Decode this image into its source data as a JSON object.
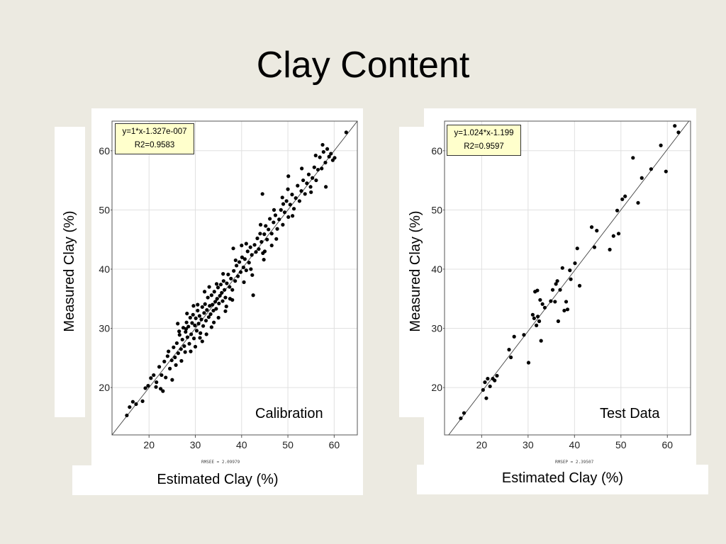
{
  "title": "Clay Content",
  "chart_data": [
    {
      "type": "scatter",
      "label": "Calibration",
      "xlabel": "Estimated Clay  (%)",
      "ylabel": "Measured Clay  (%)",
      "xlim": [
        12,
        65
      ],
      "ylim": [
        12,
        65
      ],
      "xticks": [
        20,
        30,
        40,
        50,
        60
      ],
      "yticks": [
        20,
        30,
        40,
        50,
        60
      ],
      "grid": true,
      "equation": "y=1*x-1.327e-007",
      "r2": "R2=0.9583",
      "rmse": "RMSEE = 2.09979",
      "fit": {
        "slope": 1.0,
        "intercept": 0.0
      },
      "points": [
        [
          15.2,
          15.3
        ],
        [
          15.8,
          16.7
        ],
        [
          16.5,
          17.6
        ],
        [
          17.2,
          17.2
        ],
        [
          18.6,
          17.7
        ],
        [
          19.2,
          19.9
        ],
        [
          19.8,
          20.3
        ],
        [
          20.4,
          21.6
        ],
        [
          21.0,
          22.1
        ],
        [
          21.6,
          20.9
        ],
        [
          22.2,
          23.5
        ],
        [
          22.7,
          22.1
        ],
        [
          23.3,
          24.4
        ],
        [
          23.6,
          21.7
        ],
        [
          24.0,
          25.3
        ],
        [
          24.5,
          23.2
        ],
        [
          24.9,
          24.6
        ],
        [
          25.3,
          26.8
        ],
        [
          25.6,
          25.1
        ],
        [
          26.0,
          27.5
        ],
        [
          26.3,
          25.8
        ],
        [
          26.6,
          28.9
        ],
        [
          26.9,
          26.5
        ],
        [
          27.2,
          28.1
        ],
        [
          27.4,
          30.1
        ],
        [
          27.6,
          27.0
        ],
        [
          27.9,
          29.4
        ],
        [
          28.1,
          31.0
        ],
        [
          28.3,
          28.5
        ],
        [
          28.5,
          30.3
        ],
        [
          28.7,
          27.4
        ],
        [
          28.9,
          31.8
        ],
        [
          29.1,
          29.0
        ],
        [
          29.3,
          30.9
        ],
        [
          29.5,
          32.3
        ],
        [
          29.7,
          28.3
        ],
        [
          29.9,
          30.5
        ],
        [
          30.1,
          31.7
        ],
        [
          30.3,
          29.6
        ],
        [
          30.5,
          33.0
        ],
        [
          30.7,
          30.8
        ],
        [
          30.9,
          32.1
        ],
        [
          31.1,
          29.2
        ],
        [
          31.3,
          31.5
        ],
        [
          31.5,
          33.6
        ],
        [
          31.7,
          30.4
        ],
        [
          31.9,
          32.6
        ],
        [
          32.1,
          34.1
        ],
        [
          32.3,
          31.3
        ],
        [
          32.5,
          33.1
        ],
        [
          32.7,
          35.2
        ],
        [
          32.9,
          31.9
        ],
        [
          33.1,
          33.8
        ],
        [
          33.3,
          32.4
        ],
        [
          33.5,
          35.6
        ],
        [
          33.7,
          34.0
        ],
        [
          33.9,
          33.0
        ],
        [
          34.1,
          36.2
        ],
        [
          34.3,
          34.5
        ],
        [
          34.5,
          33.3
        ],
        [
          34.7,
          35.0
        ],
        [
          34.9,
          36.9
        ],
        [
          35.1,
          34.2
        ],
        [
          35.3,
          35.5
        ],
        [
          35.5,
          37.4
        ],
        [
          35.7,
          36.0
        ],
        [
          35.9,
          34.6
        ],
        [
          36.1,
          38.0
        ],
        [
          36.3,
          36.5
        ],
        [
          36.5,
          35.2
        ],
        [
          36.8,
          37.6
        ],
        [
          37.1,
          39.1
        ],
        [
          37.4,
          37.0
        ],
        [
          37.7,
          38.4
        ],
        [
          38.0,
          36.5
        ],
        [
          38.3,
          39.7
        ],
        [
          38.6,
          38.0
        ],
        [
          38.9,
          40.6
        ],
        [
          39.2,
          38.8
        ],
        [
          39.5,
          41.2
        ],
        [
          39.8,
          39.5
        ],
        [
          40.1,
          42.0
        ],
        [
          40.4,
          40.3
        ],
        [
          40.7,
          41.7
        ],
        [
          41.0,
          39.8
        ],
        [
          41.3,
          43.0
        ],
        [
          41.6,
          41.1
        ],
        [
          41.9,
          43.7
        ],
        [
          42.2,
          42.4
        ],
        [
          42.5,
          35.6
        ],
        [
          42.8,
          44.1
        ],
        [
          43.1,
          42.9
        ],
        [
          43.4,
          45.2
        ],
        [
          43.7,
          43.4
        ],
        [
          44.0,
          46.0
        ],
        [
          44.3,
          44.6
        ],
        [
          44.6,
          42.7
        ],
        [
          44.9,
          45.9
        ],
        [
          45.2,
          47.3
        ],
        [
          45.5,
          45.0
        ],
        [
          45.8,
          46.7
        ],
        [
          46.1,
          48.5
        ],
        [
          46.5,
          46.0
        ],
        [
          46.9,
          47.9
        ],
        [
          47.3,
          49.1
        ],
        [
          47.7,
          46.8
        ],
        [
          48.1,
          48.4
        ],
        [
          48.5,
          50.0
        ],
        [
          48.9,
          47.5
        ],
        [
          49.3,
          49.6
        ],
        [
          49.7,
          51.5
        ],
        [
          50.1,
          48.8
        ],
        [
          50.5,
          50.9
        ],
        [
          50.9,
          52.6
        ],
        [
          51.3,
          50.2
        ],
        [
          51.7,
          52.0
        ],
        [
          52.1,
          54.1
        ],
        [
          52.5,
          51.5
        ],
        [
          52.9,
          53.2
        ],
        [
          53.3,
          55.0
        ],
        [
          53.7,
          52.7
        ],
        [
          54.1,
          54.5
        ],
        [
          54.5,
          56.0
        ],
        [
          54.9,
          53.9
        ],
        [
          55.3,
          55.4
        ],
        [
          55.7,
          57.2
        ],
        [
          56.1,
          55.0
        ],
        [
          56.5,
          56.8
        ],
        [
          56.9,
          58.9
        ],
        [
          57.3,
          57.0
        ],
        [
          57.7,
          59.8
        ],
        [
          58.1,
          58.0
        ],
        [
          58.5,
          60.3
        ],
        [
          58.9,
          59.0
        ],
        [
          59.3,
          59.5
        ],
        [
          59.7,
          58.4
        ],
        [
          60.1,
          58.8
        ],
        [
          57.5,
          61.0
        ],
        [
          58.2,
          53.9
        ],
        [
          62.6,
          63.1
        ],
        [
          50.1,
          55.7
        ],
        [
          44.5,
          52.7
        ],
        [
          47.5,
          45.1
        ],
        [
          41.0,
          44.3
        ],
        [
          38.2,
          43.5
        ],
        [
          36.5,
          32.9
        ],
        [
          33.0,
          37.0
        ],
        [
          31.5,
          27.8
        ],
        [
          29.0,
          26.1
        ],
        [
          27.0,
          24.5
        ],
        [
          25.0,
          21.3
        ],
        [
          23.0,
          19.4
        ],
        [
          21.5,
          20.1
        ],
        [
          22.5,
          19.8
        ],
        [
          26.5,
          29.5
        ],
        [
          28.2,
          32.5
        ],
        [
          30.5,
          34.0
        ],
        [
          32.4,
          29.0
        ],
        [
          34.6,
          37.5
        ],
        [
          36.7,
          33.7
        ],
        [
          38.7,
          41.5
        ],
        [
          40.5,
          37.8
        ],
        [
          42.0,
          40.0
        ],
        [
          44.1,
          47.5
        ],
        [
          46.5,
          44.0
        ],
        [
          48.8,
          52.1
        ],
        [
          51.0,
          49.0
        ],
        [
          53.0,
          57.0
        ],
        [
          55.0,
          53.0
        ],
        [
          56.0,
          59.2
        ],
        [
          49.0,
          51.0
        ],
        [
          45.0,
          43.0
        ],
        [
          37.5,
          35.0
        ],
        [
          35.0,
          31.8
        ],
        [
          33.5,
          30.2
        ],
        [
          31.0,
          28.4
        ],
        [
          29.6,
          33.8
        ],
        [
          27.8,
          26.0
        ],
        [
          25.8,
          23.8
        ],
        [
          24.2,
          26.1
        ],
        [
          26.2,
          30.8
        ],
        [
          28.0,
          29.9
        ],
        [
          30.0,
          26.9
        ],
        [
          32.0,
          36.2
        ],
        [
          34.0,
          31.0
        ],
        [
          36.0,
          39.2
        ],
        [
          38.0,
          34.8
        ],
        [
          40.0,
          44.0
        ],
        [
          42.3,
          39.0
        ],
        [
          44.8,
          41.6
        ],
        [
          47.0,
          50.0
        ],
        [
          50.0,
          53.5
        ]
      ]
    },
    {
      "type": "scatter",
      "label": "Test Data",
      "xlabel": "Estimated Clay  (%)",
      "ylabel": "Measured Clay  (%)",
      "xlim": [
        12,
        65
      ],
      "ylim": [
        12,
        65
      ],
      "xticks": [
        20,
        30,
        40,
        50,
        60
      ],
      "yticks": [
        20,
        30,
        40,
        50,
        60
      ],
      "grid": true,
      "equation": "y=1.024*x-1.199",
      "r2": "R2=0.9597",
      "rmse": "RMSEP = 2.39507",
      "fit": {
        "slope": 1.024,
        "intercept": -1.199
      },
      "points": [
        [
          15.5,
          14.8
        ],
        [
          16.2,
          15.7
        ],
        [
          20.3,
          19.6
        ],
        [
          20.7,
          20.9
        ],
        [
          21.0,
          18.2
        ],
        [
          21.3,
          21.5
        ],
        [
          21.8,
          20.2
        ],
        [
          22.4,
          21.5
        ],
        [
          22.8,
          21.2
        ],
        [
          23.3,
          22.0
        ],
        [
          25.9,
          26.4
        ],
        [
          26.3,
          25.1
        ],
        [
          27.0,
          28.6
        ],
        [
          29.1,
          28.9
        ],
        [
          30.1,
          24.2
        ],
        [
          31.0,
          32.3
        ],
        [
          31.3,
          31.7
        ],
        [
          31.8,
          30.5
        ],
        [
          32.1,
          32.0
        ],
        [
          32.4,
          31.2
        ],
        [
          32.6,
          34.8
        ],
        [
          32.8,
          27.9
        ],
        [
          33.1,
          34.1
        ],
        [
          33.6,
          33.5
        ],
        [
          31.5,
          36.2
        ],
        [
          32.0,
          36.4
        ],
        [
          34.9,
          34.6
        ],
        [
          35.3,
          36.5
        ],
        [
          35.8,
          34.5
        ],
        [
          36.0,
          37.5
        ],
        [
          36.3,
          38.0
        ],
        [
          36.5,
          31.2
        ],
        [
          36.9,
          36.5
        ],
        [
          37.4,
          40.2
        ],
        [
          37.8,
          33.0
        ],
        [
          38.2,
          34.5
        ],
        [
          38.5,
          33.2
        ],
        [
          39.0,
          39.8
        ],
        [
          39.2,
          38.3
        ],
        [
          40.1,
          41.0
        ],
        [
          40.6,
          43.5
        ],
        [
          41.1,
          37.2
        ],
        [
          43.7,
          47.1
        ],
        [
          44.3,
          43.7
        ],
        [
          44.8,
          46.5
        ],
        [
          47.6,
          43.3
        ],
        [
          48.4,
          45.6
        ],
        [
          49.2,
          49.9
        ],
        [
          49.5,
          46.0
        ],
        [
          50.3,
          51.8
        ],
        [
          50.9,
          52.3
        ],
        [
          52.6,
          58.8
        ],
        [
          53.7,
          51.2
        ],
        [
          54.5,
          55.4
        ],
        [
          56.5,
          56.9
        ],
        [
          58.6,
          60.9
        ],
        [
          59.7,
          56.5
        ],
        [
          61.6,
          64.2
        ],
        [
          62.4,
          63.1
        ]
      ]
    }
  ]
}
